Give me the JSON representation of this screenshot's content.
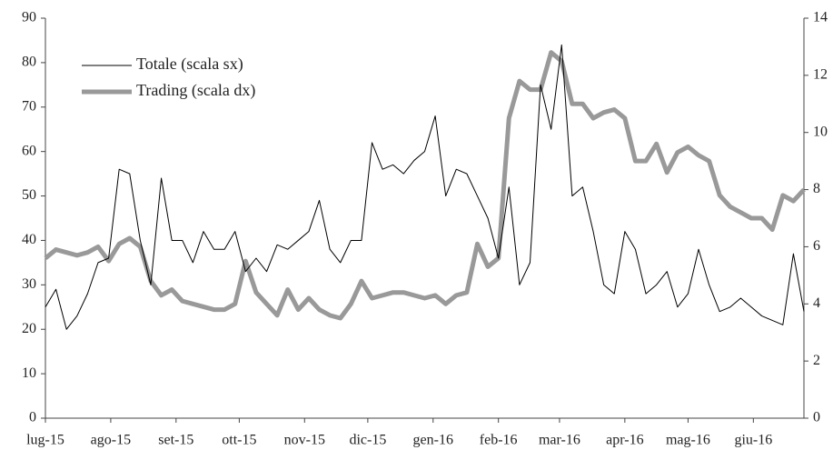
{
  "chart_data": {
    "type": "line",
    "legend": "upper left",
    "x": [
      0,
      5,
      10,
      15,
      20,
      25,
      30,
      35,
      40,
      45,
      50,
      55,
      60,
      65,
      70,
      75,
      80,
      85,
      90,
      95,
      100,
      105,
      110,
      115,
      120,
      125,
      130,
      135,
      140,
      145,
      150,
      155,
      160,
      165,
      170,
      175,
      180,
      185,
      190,
      195,
      200,
      205,
      210,
      215,
      220,
      225,
      230,
      235,
      240,
      245,
      250,
      255,
      260,
      265,
      270,
      275,
      280,
      285,
      290,
      295,
      300,
      305,
      310,
      315,
      320,
      325,
      330,
      335,
      340,
      345,
      350,
      355,
      360
    ],
    "xlim": [
      0,
      360
    ],
    "xticks": [
      {
        "value": 0,
        "label": "lug-15"
      },
      {
        "value": 31,
        "label": "ago-15"
      },
      {
        "value": 62,
        "label": "set-15"
      },
      {
        "value": 92,
        "label": "ott-15"
      },
      {
        "value": 123,
        "label": "nov-15"
      },
      {
        "value": 153,
        "label": "dic-15"
      },
      {
        "value": 184,
        "label": "gen-16"
      },
      {
        "value": 215,
        "label": "feb-16"
      },
      {
        "value": 244,
        "label": "mar-16"
      },
      {
        "value": 275,
        "label": "apr-16"
      },
      {
        "value": 305,
        "label": "mag-16"
      },
      {
        "value": 336,
        "label": "giu-16"
      }
    ],
    "ylim": [
      0,
      90
    ],
    "yticks": [
      0,
      10,
      20,
      30,
      40,
      50,
      60,
      70,
      80,
      90
    ],
    "y2lim": [
      0,
      14
    ],
    "y2ticks": [
      0,
      2,
      4,
      6,
      8,
      10,
      12,
      14
    ],
    "series": [
      {
        "name": "Totale (scala sx)",
        "color": "#000000",
        "values": [
          25,
          29,
          20,
          23,
          28,
          35,
          36,
          56,
          55,
          40,
          30,
          54,
          40,
          40,
          35,
          42,
          38,
          38,
          42,
          33,
          36,
          33,
          39,
          38,
          40,
          42,
          49,
          38,
          35,
          40,
          40,
          62,
          56,
          57,
          55,
          58,
          60,
          68,
          50,
          56,
          55,
          50,
          45,
          36,
          52,
          30,
          35,
          75,
          65,
          84,
          50,
          52,
          42,
          30,
          28,
          42,
          38,
          28,
          30,
          33,
          25,
          28,
          38,
          30,
          24,
          25,
          27,
          25,
          23,
          22,
          21,
          37,
          24
        ]
      },
      {
        "name": "Trading (scala dx)",
        "color": "#999999",
        "axis": "y2",
        "values": [
          5.6,
          5.9,
          5.8,
          5.7,
          5.8,
          6.0,
          5.5,
          6.1,
          6.3,
          6.0,
          4.8,
          4.3,
          4.5,
          4.1,
          4.0,
          3.9,
          3.8,
          3.8,
          4.0,
          5.5,
          4.4,
          4.0,
          3.6,
          4.5,
          3.8,
          4.2,
          3.8,
          3.6,
          3.5,
          4.0,
          4.8,
          4.2,
          4.3,
          4.4,
          4.4,
          4.3,
          4.2,
          4.3,
          4.0,
          4.3,
          4.4,
          6.1,
          5.3,
          5.6,
          10.5,
          11.8,
          11.5,
          11.5,
          12.8,
          12.5,
          11.0,
          11.0,
          10.5,
          10.7,
          10.8,
          10.5,
          9.0,
          9.0,
          9.6,
          8.6,
          9.3,
          9.5,
          9.2,
          9.0,
          7.8,
          7.4,
          7.2,
          7.0,
          7.0,
          6.6,
          7.8,
          7.6,
          8.0
        ]
      }
    ]
  }
}
